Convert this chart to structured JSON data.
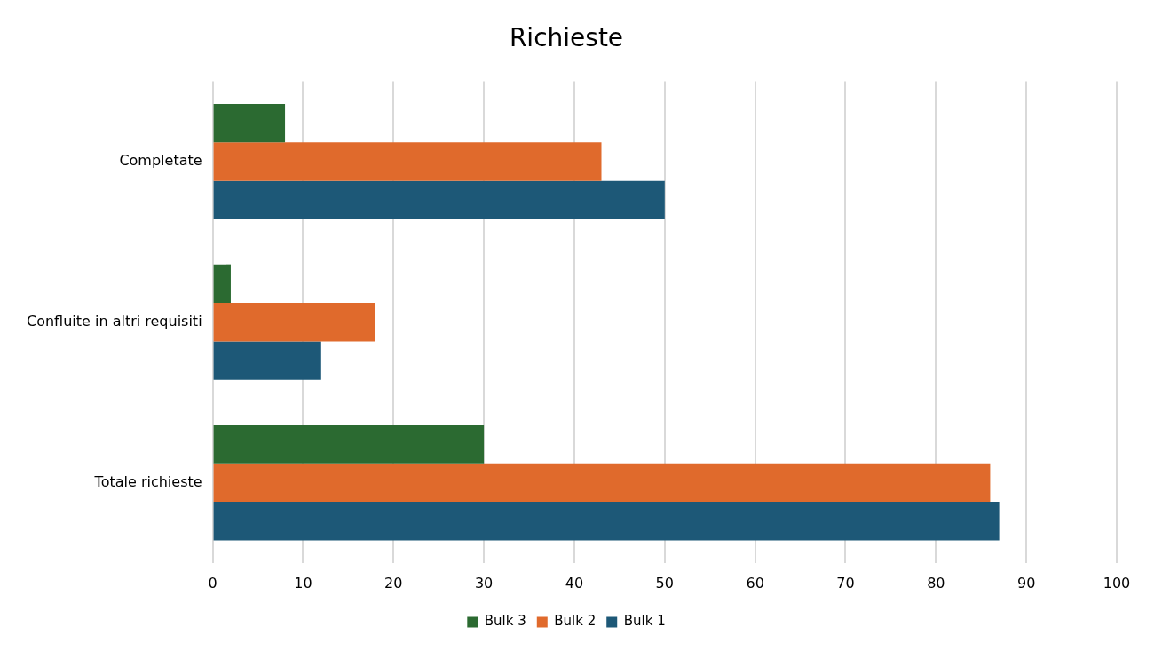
{
  "chart_data": {
    "type": "bar",
    "orientation": "horizontal",
    "title": "Richieste",
    "categories": [
      "Completate",
      "Confluite in altri requisiti",
      "Totale richieste"
    ],
    "series": [
      {
        "name": "Bulk 3",
        "color": "#2b6a31",
        "values": [
          8,
          2,
          30
        ]
      },
      {
        "name": "Bulk 2",
        "color": "#e06a2c",
        "values": [
          43,
          18,
          86
        ]
      },
      {
        "name": "Bulk 1",
        "color": "#1d5877",
        "values": [
          50,
          12,
          87
        ]
      }
    ],
    "xlim": [
      0,
      100
    ],
    "xticks": [
      0,
      10,
      20,
      30,
      40,
      50,
      60,
      70,
      80,
      90,
      100
    ],
    "grid": "x",
    "legend": "bottom"
  }
}
